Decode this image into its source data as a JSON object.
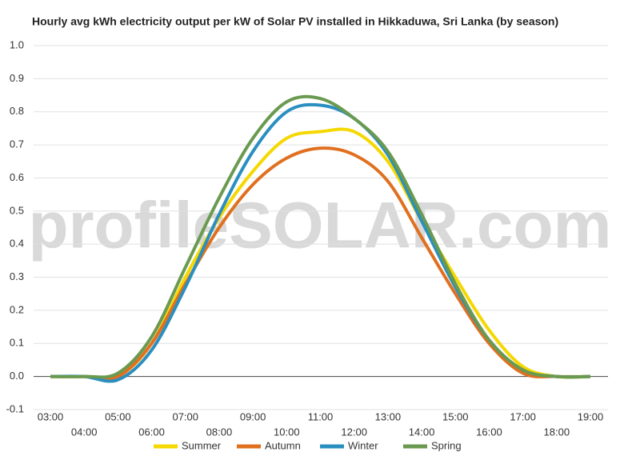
{
  "chart_data": {
    "type": "line",
    "title": "Hourly avg kWh electricity output per kW of Solar PV installed in Hikkaduwa, Sri Lanka (by season)",
    "watermark": "profileSOLAR.com",
    "categories": [
      "03:00",
      "04:00",
      "05:00",
      "06:00",
      "07:00",
      "08:00",
      "09:00",
      "10:00",
      "11:00",
      "12:00",
      "13:00",
      "14:00",
      "15:00",
      "16:00",
      "17:00",
      "18:00",
      "19:00"
    ],
    "series": [
      {
        "name": "Summer",
        "color": "#f5d800",
        "values": [
          0,
          0,
          0,
          0.1,
          0.3,
          0.48,
          0.62,
          0.72,
          0.74,
          0.74,
          0.65,
          0.47,
          0.3,
          0.14,
          0.03,
          0,
          0
        ]
      },
      {
        "name": "Autumn",
        "color": "#e07020",
        "values": [
          0,
          0,
          0,
          0.1,
          0.28,
          0.45,
          0.58,
          0.66,
          0.69,
          0.67,
          0.59,
          0.42,
          0.25,
          0.1,
          0.01,
          0,
          0
        ]
      },
      {
        "name": "Winter",
        "color": "#2a8fc0",
        "values": [
          0,
          0,
          -0.01,
          0.08,
          0.27,
          0.49,
          0.68,
          0.8,
          0.82,
          0.78,
          0.67,
          0.47,
          0.27,
          0.11,
          0.02,
          0,
          0
        ]
      },
      {
        "name": "Spring",
        "color": "#6a9a50",
        "values": [
          0,
          0,
          0.01,
          0.12,
          0.33,
          0.54,
          0.72,
          0.83,
          0.84,
          0.78,
          0.68,
          0.49,
          0.28,
          0.11,
          0.02,
          0,
          0
        ]
      }
    ],
    "ylim": [
      -0.1,
      1.0
    ],
    "yticks": [
      -0.1,
      {
        "value": 0,
        "label": "0.0"
      },
      0.1,
      0.2,
      0.3,
      0.4,
      0.5,
      0.6,
      0.7,
      0.8,
      0.9,
      {
        "value": 1,
        "label": "1.0"
      }
    ],
    "grid": true,
    "legend": "bottom"
  }
}
